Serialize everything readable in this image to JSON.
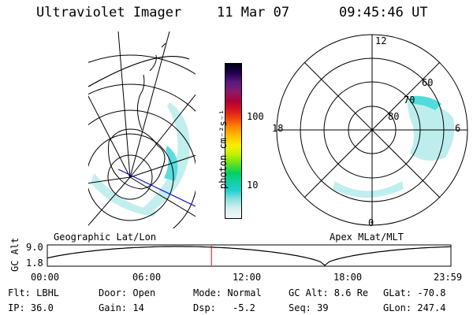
{
  "header": {
    "instrument": "Ultraviolet Imager",
    "date": "11 Mar 07",
    "time": "09:45:46 UT"
  },
  "colorbar": {
    "unit": "photon cm⁻²s⁻¹",
    "ticks": [
      "100",
      "10"
    ],
    "colors": [
      "#000010",
      "#200050",
      "#5a1a80",
      "#8a1a6a",
      "#b0003a",
      "#d01020",
      "#ee4010",
      "#ff8800",
      "#ffc000",
      "#f8f000",
      "#c0f000",
      "#60e020",
      "#00d060",
      "#10d0a0",
      "#20d0d0",
      "#90e0e0",
      "#d8f0f0",
      "#eef8f8"
    ]
  },
  "geo_panel": {
    "label": "Geographic Lat/Lon"
  },
  "apex_panel": {
    "label": "Apex MLat/MLT",
    "mlt_labels": {
      "top": "12",
      "bottom": "0",
      "left": "18",
      "right": "6"
    },
    "lat_labels": [
      "60",
      "70",
      "80"
    ]
  },
  "altitude_plot": {
    "ylabel": "GC Alt",
    "yticks": [
      "9.0",
      "1.8"
    ],
    "xticks": [
      "00:00",
      "06:00",
      "12:00",
      "18:00",
      "23:59"
    ],
    "marker_hour": 9.76
  },
  "info": {
    "filter": "Flt: LBHL",
    "ip": "IP: 36.0",
    "door": "Door: Open",
    "gain": "Gain: 14",
    "mode": "Mode: Normal",
    "dsp_label": "Dsp:",
    "dsp_value": "-5.2",
    "gc_alt": "GC Alt: 8.6 Re",
    "seq": "Seq: 39",
    "glat": "GLat: -70.8",
    "glon": "GLon: 247.4"
  }
}
